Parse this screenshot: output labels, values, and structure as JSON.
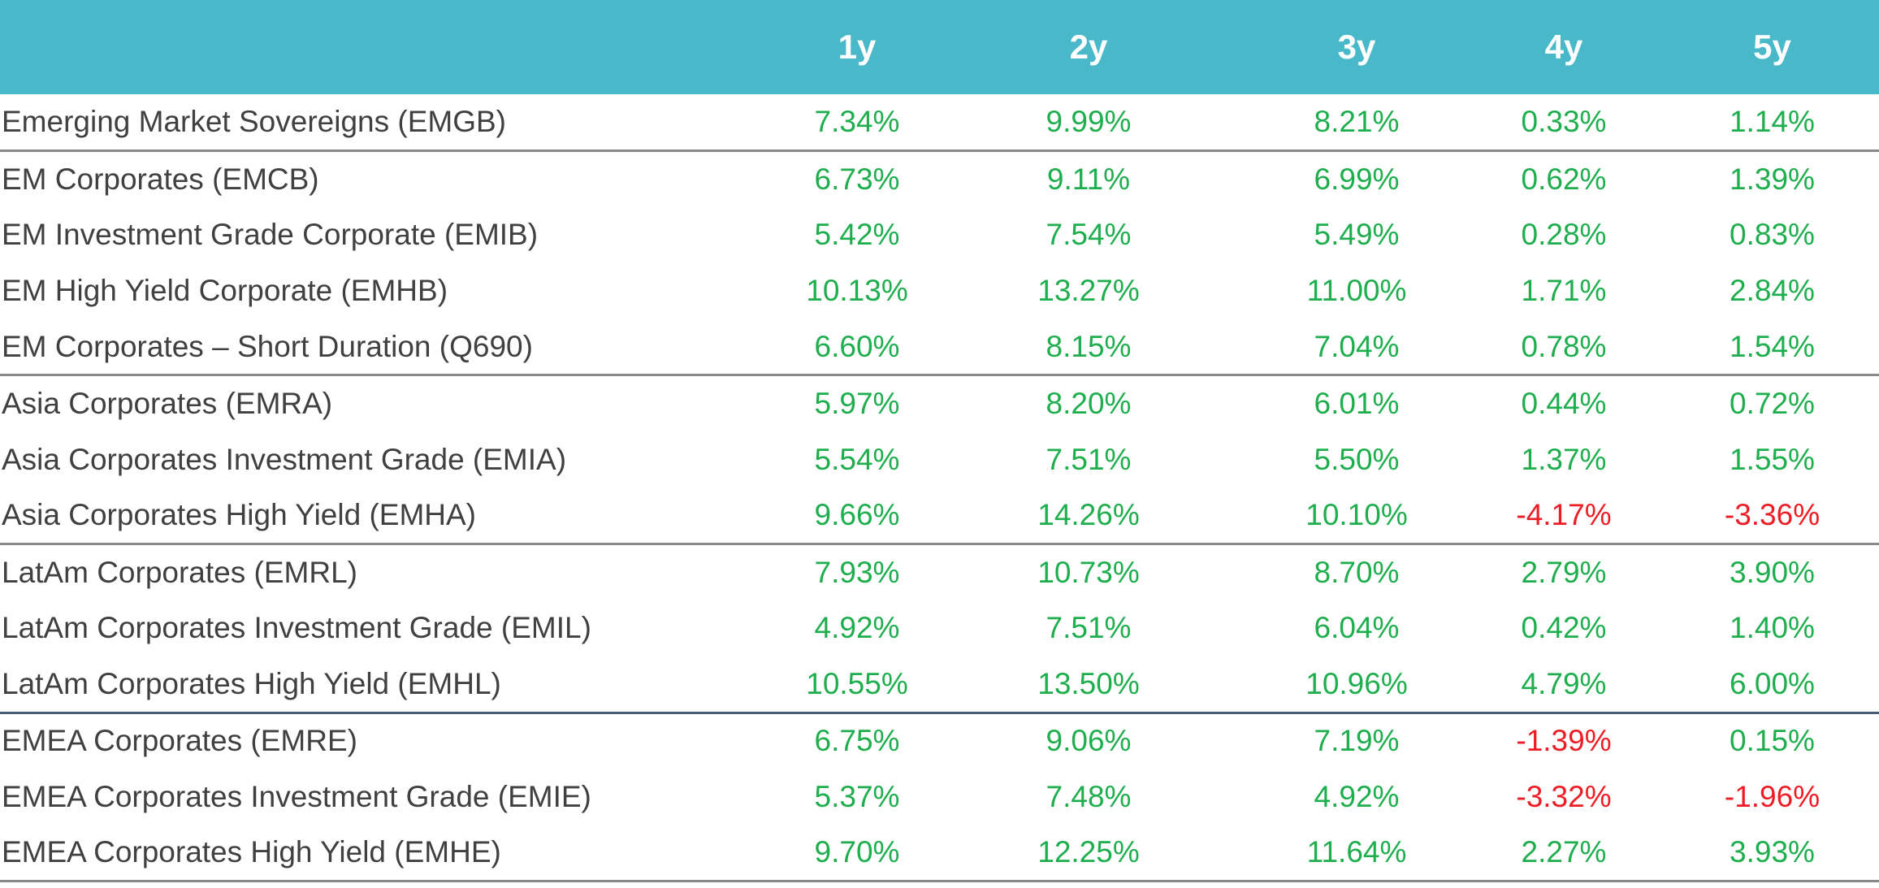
{
  "table": {
    "columns": [
      "",
      "1y",
      "2y",
      "3y",
      "4y",
      "5y"
    ],
    "colors": {
      "header_bg": "#49b9ca",
      "positive": "#1fae4e",
      "negative": "#ee1c25",
      "label": "#404040"
    },
    "rows": [
      {
        "label": "Emerging Market Sovereigns (EMGB)",
        "values": [
          "7.34%",
          "9.99%",
          "8.21%",
          "0.33%",
          "1.14%"
        ]
      },
      {
        "label": "EM Corporates (EMCB)",
        "values": [
          "6.73%",
          "9.11%",
          "6.99%",
          "0.62%",
          "1.39%"
        ]
      },
      {
        "label": "EM Investment Grade Corporate (EMIB)",
        "values": [
          "5.42%",
          "7.54%",
          "5.49%",
          "0.28%",
          "0.83%"
        ]
      },
      {
        "label": "EM High Yield Corporate (EMHB)",
        "values": [
          "10.13%",
          "13.27%",
          "11.00%",
          "1.71%",
          "2.84%"
        ]
      },
      {
        "label": "EM Corporates – Short Duration (Q690)",
        "values": [
          "6.60%",
          "8.15%",
          "7.04%",
          "0.78%",
          "1.54%"
        ]
      },
      {
        "label": "Asia Corporates (EMRA)",
        "values": [
          "5.97%",
          "8.20%",
          "6.01%",
          "0.44%",
          "0.72%"
        ]
      },
      {
        "label": "Asia Corporates Investment Grade (EMIA)",
        "values": [
          "5.54%",
          "7.51%",
          "5.50%",
          "1.37%",
          "1.55%"
        ]
      },
      {
        "label": "Asia Corporates High Yield (EMHA)",
        "values": [
          "9.66%",
          "14.26%",
          "10.10%",
          "-4.17%",
          "-3.36%"
        ]
      },
      {
        "label": "LatAm Corporates (EMRL)",
        "values": [
          "7.93%",
          "10.73%",
          "8.70%",
          "2.79%",
          "3.90%"
        ]
      },
      {
        "label": "LatAm Corporates Investment Grade (EMIL)",
        "values": [
          "4.92%",
          "7.51%",
          "6.04%",
          "0.42%",
          "1.40%"
        ]
      },
      {
        "label": "LatAm Corporates High Yield (EMHL)",
        "values": [
          "10.55%",
          "13.50%",
          "10.96%",
          "4.79%",
          "6.00%"
        ]
      },
      {
        "label": "EMEA Corporates (EMRE)",
        "values": [
          "6.75%",
          "9.06%",
          "7.19%",
          "-1.39%",
          "0.15%"
        ]
      },
      {
        "label": "EMEA Corporates Investment Grade (EMIE)",
        "values": [
          "5.37%",
          "7.48%",
          "4.92%",
          "-3.32%",
          "-1.96%"
        ]
      },
      {
        "label": "EMEA Corporates High Yield (EMHE)",
        "values": [
          "9.70%",
          "12.25%",
          "11.64%",
          "2.27%",
          "3.93%"
        ]
      }
    ]
  }
}
